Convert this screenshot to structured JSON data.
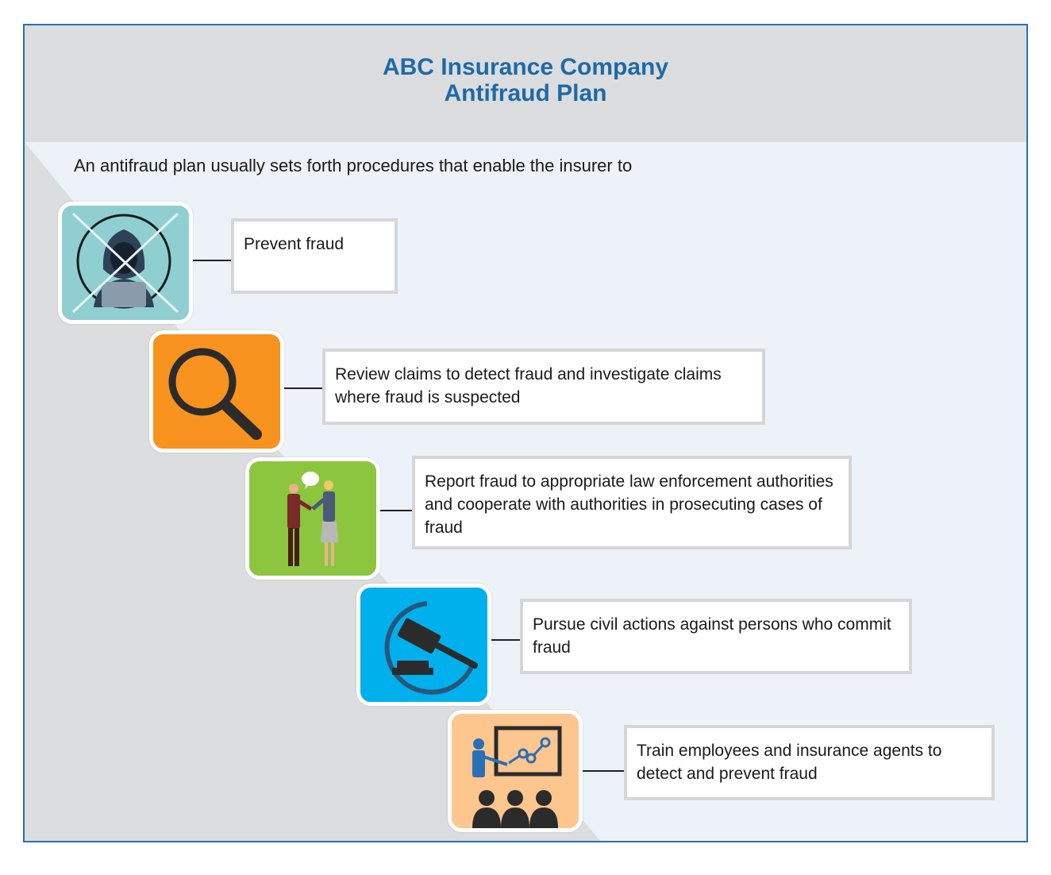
{
  "header": {
    "title_line1": "ABC Insurance Company",
    "title_line2": "Antifraud Plan"
  },
  "intro": "An antifraud plan usually sets forth procedures that enable the insurer to",
  "colors": {
    "border": "#2a6fb5",
    "title": "#1e6aa8",
    "header_bg": "#dcdddf",
    "panel_bg": "#edf2f9",
    "diagonal": "#dcdddf"
  },
  "steps": [
    {
      "text": "Prevent fraud",
      "icon": "masked-hacker-crossed-icon",
      "icon_bg": "#8fcfd1"
    },
    {
      "text": "Review claims to detect fraud and investigate claims where fraud is suspected",
      "icon": "magnifying-glass-icon",
      "icon_bg": "#f7931e"
    },
    {
      "text": "Report fraud to appropriate law enforcement authorities and cooperate with authorities in prosecuting cases of fraud",
      "icon": "handshake-people-icon",
      "icon_bg": "#8cc63f"
    },
    {
      "text": "Pursue civil actions against persons who commit fraud",
      "icon": "gavel-icon",
      "icon_bg": "#00b0ec"
    },
    {
      "text": "Train employees and insurance agents to detect and prevent fraud",
      "icon": "training-presentation-icon",
      "icon_bg": "#fdc68f"
    }
  ]
}
